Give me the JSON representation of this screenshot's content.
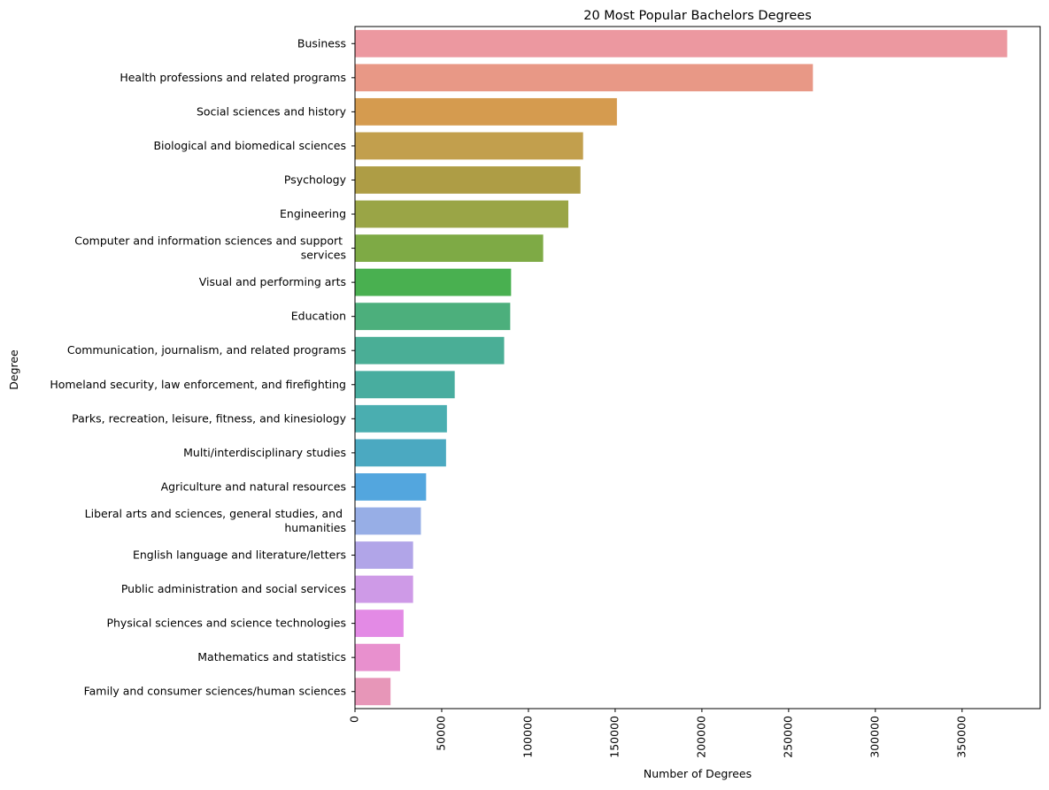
{
  "chart_data": {
    "type": "bar",
    "orientation": "horizontal",
    "title": "20 Most Popular Bachelors Degrees",
    "xlabel": "Number of Degrees",
    "ylabel": "Degree",
    "xlim": [
      0,
      395000
    ],
    "xticks": [
      0,
      50000,
      100000,
      150000,
      200000,
      250000,
      300000,
      350000
    ],
    "grid": false,
    "categories": [
      "Business",
      "Health professions and related programs",
      "Social sciences and history",
      "Biological and biomedical sciences",
      "Psychology",
      "Engineering",
      "Computer and information sciences and support \nservices",
      "Visual and performing arts",
      "Education",
      "Communication, journalism, and related programs",
      "Homeland security, law enforcement, and firefighting",
      "Parks, recreation, leisure, fitness, and kinesiology",
      "Multi/interdisciplinary studies",
      "Agriculture and natural resources",
      "Liberal arts and sciences, general studies, and \nhumanities",
      "English language and literature/letters",
      "Public administration and social services",
      "Physical sciences and science technologies",
      "Mathematics and statistics",
      "Family and consumer sciences/human sciences"
    ],
    "values": [
      376000,
      264000,
      151000,
      131500,
      130000,
      123000,
      108500,
      90000,
      89500,
      86000,
      57500,
      53000,
      52500,
      41000,
      38000,
      33500,
      33500,
      28000,
      26000,
      20500
    ],
    "colors": [
      "#ec98a0",
      "#e89886",
      "#d59b4f",
      "#c29f4d",
      "#ae9d45",
      "#9aa546",
      "#7eaa45",
      "#49b050",
      "#4caf7c",
      "#4aae96",
      "#48ad9f",
      "#4aaeb0",
      "#4ba9c1",
      "#53a6de",
      "#97aee6",
      "#b1a5e8",
      "#ce9ae7",
      "#e38ae5",
      "#e890ce",
      "#e796b8"
    ]
  }
}
